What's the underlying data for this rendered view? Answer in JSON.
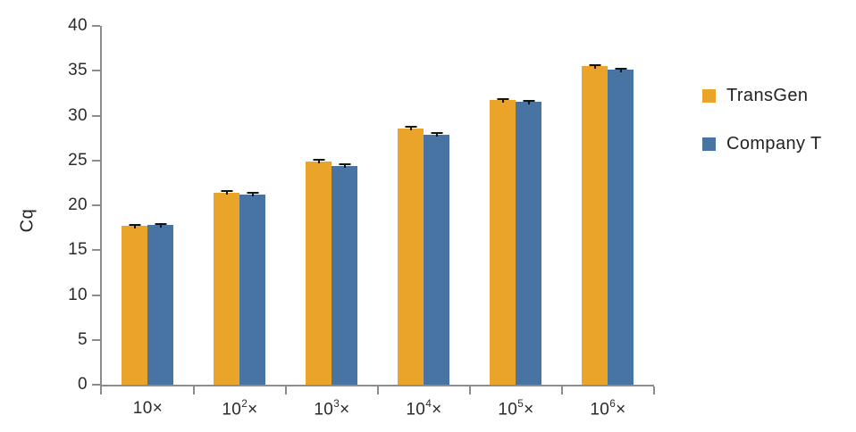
{
  "chart_data": {
    "type": "bar",
    "title": "",
    "ylabel": "Cq",
    "xlabel": "",
    "ylim": [
      0,
      40
    ],
    "y_ticks": [
      0,
      5,
      10,
      15,
      20,
      25,
      30,
      35,
      40
    ],
    "grid": false,
    "legend_position": "right",
    "categories": [
      {
        "base": "10",
        "sup": "",
        "suffix": "×"
      },
      {
        "base": "10",
        "sup": "2",
        "suffix": "×"
      },
      {
        "base": "10",
        "sup": "3",
        "suffix": "×"
      },
      {
        "base": "10",
        "sup": "4",
        "suffix": "×"
      },
      {
        "base": "10",
        "sup": "5",
        "suffix": "×"
      },
      {
        "base": "10",
        "sup": "6",
        "suffix": "×"
      }
    ],
    "series": [
      {
        "name": "TransGen",
        "color": "#E9A429",
        "values": [
          17.7,
          21.4,
          24.9,
          28.6,
          31.7,
          35.5
        ],
        "errors": [
          0.25,
          0.25,
          0.25,
          0.25,
          0.25,
          0.25
        ]
      },
      {
        "name": "Company T",
        "color": "#4874A4",
        "values": [
          17.8,
          21.2,
          24.4,
          27.9,
          31.5,
          35.1
        ],
        "errors": [
          0.25,
          0.25,
          0.25,
          0.25,
          0.25,
          0.25
        ]
      }
    ],
    "axis_color": "#8C8C8C",
    "error_bar_color": "#141414",
    "text_color": "#2b2b2b"
  }
}
